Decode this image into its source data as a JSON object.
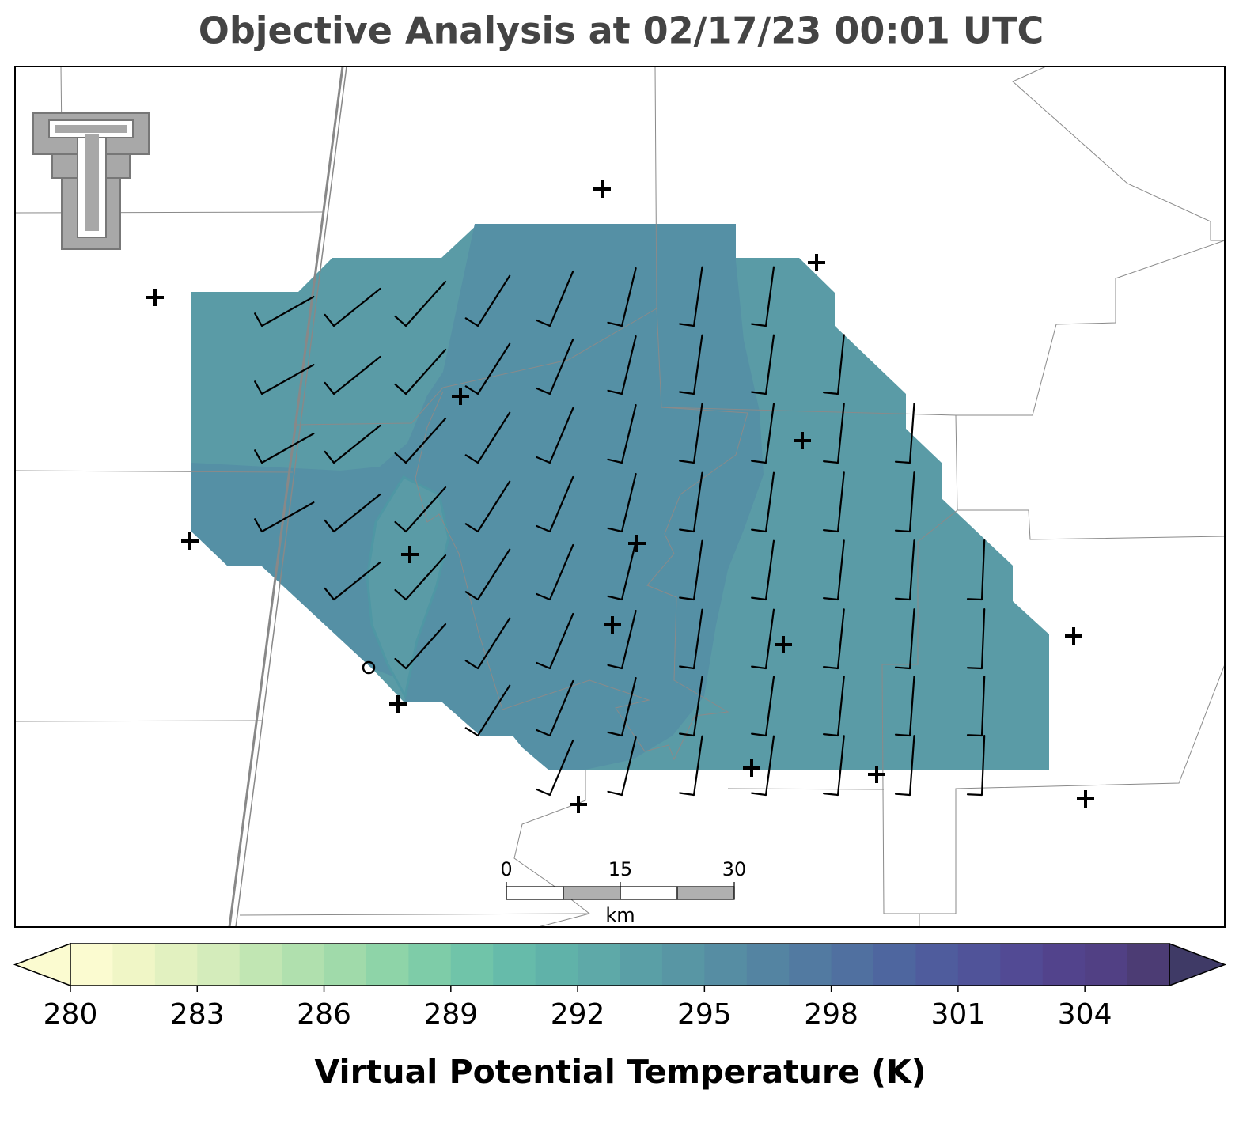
{
  "chart_data": {
    "type": "map",
    "title": "Objective Analysis at 02/17/23 00:01 UTC",
    "colorbar": {
      "label": "Virtual Potential Temperature (K)",
      "lim": [
        280,
        306
      ],
      "ticks": [
        280,
        283,
        286,
        289,
        292,
        295,
        298,
        301,
        304
      ],
      "colors": [
        "#fbfbd0",
        "#f0f6c6",
        "#e2f1c0",
        "#d4ecbb",
        "#c1e6b3",
        "#b0e0ae",
        "#a0daaa",
        "#8ed4a8",
        "#7ecca8",
        "#70c4a9",
        "#66bbaa",
        "#60b2a9",
        "#5ea9a8",
        "#5a9fa6",
        "#5896a4",
        "#568da3",
        "#5484a2",
        "#527aa1",
        "#5070a0",
        "#4e669f",
        "#4f5c9d",
        "#505399",
        "#524a94",
        "#52438c",
        "#514084",
        "#4c3c74"
      ]
    },
    "scale_bar": {
      "ticks": [
        0,
        15,
        30
      ],
      "unit": "km"
    }
  }
}
